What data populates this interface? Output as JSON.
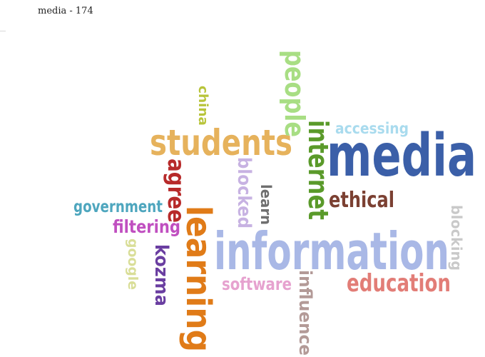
{
  "title": "media - 174",
  "words": [
    {
      "text": "media",
      "color": "#3b5fa8"
    },
    {
      "text": "information",
      "color": "#a9b8e6"
    },
    {
      "text": "students",
      "color": "#e6b25c"
    },
    {
      "text": "learning",
      "color": "#e07b18"
    },
    {
      "text": "internet",
      "color": "#5a9a2a"
    },
    {
      "text": "people",
      "color": "#a8de84"
    },
    {
      "text": "education",
      "color": "#e27d77"
    },
    {
      "text": "ethical",
      "color": "#7b4032"
    },
    {
      "text": "accessing",
      "color": "#a9dbee"
    },
    {
      "text": "government",
      "color": "#4ea6be"
    },
    {
      "text": "filtering",
      "color": "#c04fc0"
    },
    {
      "text": "agree",
      "color": "#b72a2a"
    },
    {
      "text": "blocked",
      "color": "#c7b2e2"
    },
    {
      "text": "learn",
      "color": "#6f6f6f"
    },
    {
      "text": "software",
      "color": "#e6a2cf"
    },
    {
      "text": "influence",
      "color": "#b39a97"
    },
    {
      "text": "kozma",
      "color": "#6a3ea1"
    },
    {
      "text": "google",
      "color": "#d9de98"
    },
    {
      "text": "china",
      "color": "#b8c43a"
    },
    {
      "text": "blocking",
      "color": "#c9c9c9"
    }
  ]
}
